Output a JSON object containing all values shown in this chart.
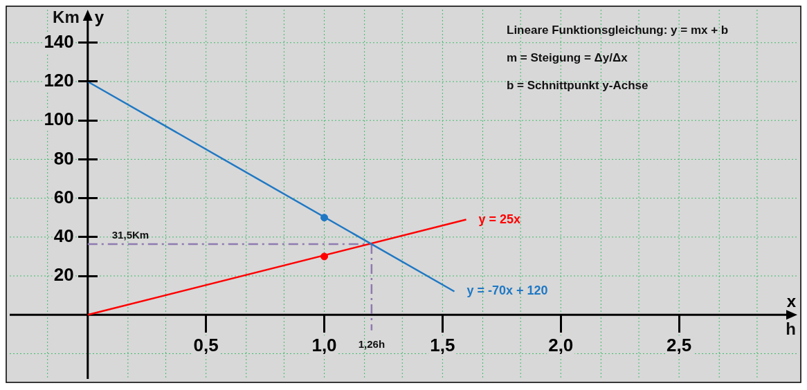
{
  "chart_data": {
    "type": "line",
    "xlabel": "x",
    "ylabel": "y",
    "xlim": [
      -0.33,
      3.0
    ],
    "ylim": [
      -33,
      157
    ],
    "xticks": [
      {
        "value": -0.17,
        "label": null
      },
      {
        "value": 0.17,
        "label": null
      },
      {
        "value": 0.33,
        "label": null
      },
      {
        "value": 0.5,
        "label": "0,5"
      },
      {
        "value": 0.67,
        "label": null
      },
      {
        "value": 0.83,
        "label": null
      },
      {
        "value": 1.0,
        "label": "1,0"
      },
      {
        "value": 1.17,
        "label": null
      },
      {
        "value": 1.33,
        "label": null
      },
      {
        "value": 1.5,
        "label": "1,5"
      },
      {
        "value": 1.67,
        "label": null
      },
      {
        "value": 1.83,
        "label": null
      },
      {
        "value": 2.0,
        "label": "2,0"
      },
      {
        "value": 2.17,
        "label": null
      },
      {
        "value": 2.33,
        "label": null
      },
      {
        "value": 2.5,
        "label": "2,5"
      },
      {
        "value": 2.67,
        "label": null
      },
      {
        "value": 2.83,
        "label": null
      }
    ],
    "yticks": [
      {
        "value": -20,
        "label": null
      },
      {
        "value": 0,
        "label": null
      },
      20,
      40,
      60,
      80,
      100,
      120,
      140
    ],
    "grid": true,
    "legend": false,
    "series": [
      {
        "name": "y = -70x + 120",
        "type": "line",
        "color": "#1f78c4",
        "x": [
          0,
          1.55
        ],
        "values": [
          120,
          12
        ]
      },
      {
        "name": "y = 25x",
        "type": "line",
        "color": "#ff0000",
        "x": [
          0,
          1.6
        ],
        "values": [
          0,
          49
        ]
      },
      {
        "type": "scatter",
        "colors": [
          "#1f78c4",
          "#ff0000"
        ],
        "x": [
          1,
          1
        ],
        "values": [
          50,
          30
        ]
      },
      {
        "type": "line",
        "line_style": "dashed",
        "color": "#8e7bb0",
        "x": [
          0,
          1.2
        ],
        "values": [
          36.4,
          36.4
        ]
      },
      {
        "type": "line",
        "line_style": "dashed",
        "color": "#8e7bb0",
        "x": [
          1.2,
          1.2
        ],
        "values": [
          36.4,
          -8
        ]
      }
    ],
    "annotations": [
      "Lineare Funktionsgleichung: y = mx + b",
      "m = Steigung = Δy/Δx",
      "b = Schnittpunkt y-Achse",
      "Km",
      "h",
      "31,5Km",
      "1,26h"
    ]
  }
}
